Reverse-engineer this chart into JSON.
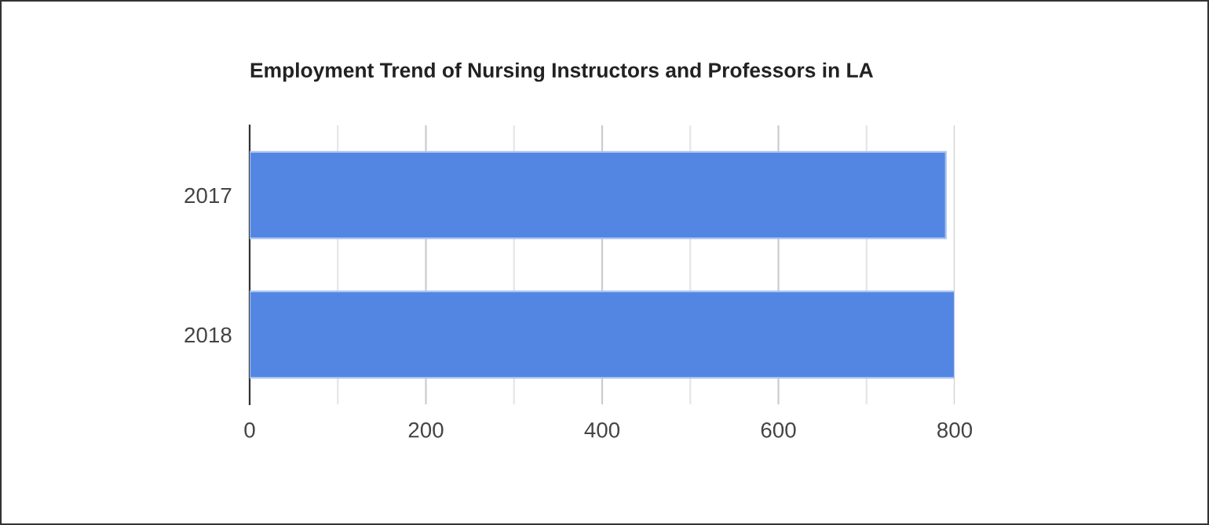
{
  "chart_data": {
    "type": "bar",
    "orientation": "horizontal",
    "title": "Employment Trend of Nursing Instructors and Professors in LA",
    "categories": [
      "2017",
      "2018"
    ],
    "series": [
      {
        "color": "#5286e2",
        "values": [
          790,
          800
        ]
      }
    ],
    "xlim": [
      0,
      800
    ],
    "xticks": [
      0,
      {
        "value": 100,
        "label": null
      },
      200,
      {
        "value": 300,
        "label": null
      },
      400,
      {
        "value": 500,
        "label": null
      },
      600,
      {
        "value": 700,
        "label": null
      },
      800
    ],
    "grid": "x"
  }
}
